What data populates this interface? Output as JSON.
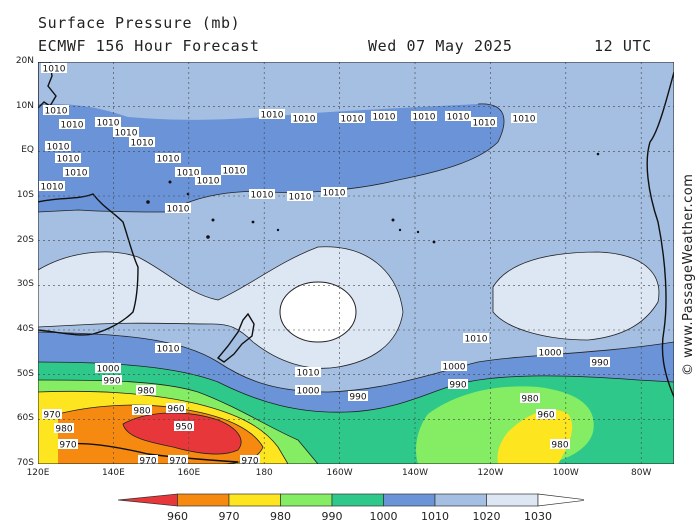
{
  "header": {
    "title": "Surface Pressure (mb)",
    "model_line": "ECMWF 156 Hour Forecast",
    "date": "Wed 07 May 2025",
    "time": "12 UTC"
  },
  "watermark": "© www.PassageWeather.com",
  "axes": {
    "lat_labels": [
      "20N",
      "10N",
      "EQ",
      "10S",
      "20S",
      "30S",
      "40S",
      "50S",
      "60S",
      "70S"
    ],
    "lon_labels": [
      "120E",
      "140E",
      "160E",
      "180",
      "160W",
      "140W",
      "120W",
      "100W",
      "80W"
    ]
  },
  "legend": {
    "levels": [
      "960",
      "970",
      "980",
      "990",
      "1000",
      "1010",
      "1020",
      "1030"
    ],
    "colors": [
      "#e8373b",
      "#f68a10",
      "#fde61f",
      "#85ed63",
      "#2ec98a",
      "#6a93d8",
      "#a4bfe2",
      "#dde6f3",
      "#ffffff"
    ]
  },
  "contour_labels": [
    "1010",
    "1010",
    "1010",
    "1010",
    "1010",
    "1010",
    "1010",
    "1010",
    "1010",
    "1010",
    "1010",
    "1010",
    "1010",
    "1010",
    "1010",
    "1010",
    "1010",
    "1010",
    "1010",
    "1010",
    "1010",
    "1010",
    "1010",
    "1010",
    "1010",
    "1010",
    "1000",
    "990",
    "980",
    "980",
    "970",
    "970",
    "960",
    "950",
    "970",
    "970",
    "1000",
    "990",
    "980",
    "970",
    "1010",
    "1010",
    "1010",
    "1000",
    "990",
    "1000",
    "990",
    "980",
    "960",
    "980"
  ]
}
